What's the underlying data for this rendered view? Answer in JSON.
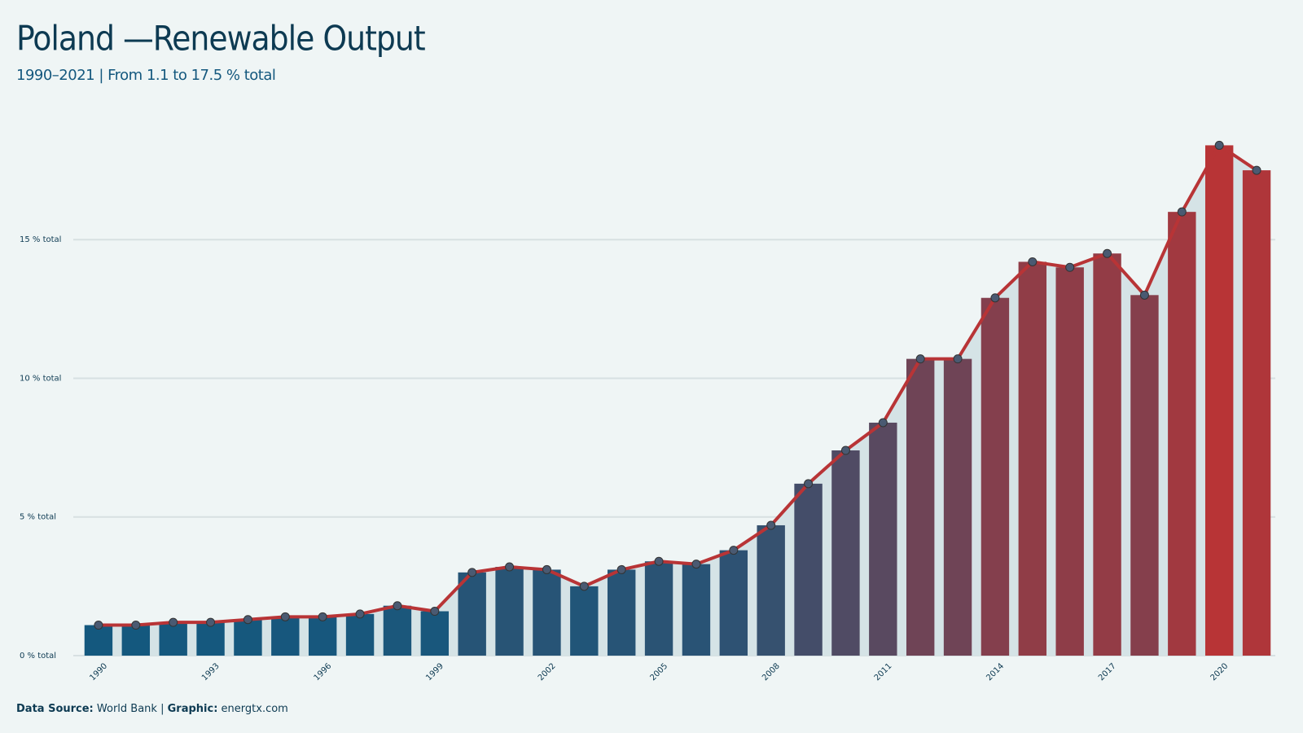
{
  "chart_data": {
    "type": "bar",
    "title": "Poland —Renewable Output",
    "subtitle": "1990–2021 | From 1.1 to 17.5 % total",
    "categories": [
      "1990",
      null,
      null,
      "1993",
      null,
      null,
      "1996",
      null,
      null,
      "1999",
      null,
      null,
      "2002",
      null,
      null,
      "2005",
      null,
      null,
      "2008",
      null,
      null,
      "2011",
      null,
      null,
      "2014",
      null,
      null,
      "2017",
      null,
      null,
      "2020",
      null
    ],
    "values": [
      1.1,
      1.1,
      1.2,
      1.2,
      1.3,
      1.4,
      1.4,
      1.5,
      1.8,
      1.6,
      3.0,
      3.2,
      3.1,
      2.5,
      3.1,
      3.4,
      3.3,
      3.8,
      4.7,
      6.2,
      7.4,
      8.4,
      10.7,
      10.7,
      12.9,
      14.2,
      14.0,
      14.5,
      13.0,
      16.0,
      18.4,
      17.5
    ],
    "color_low": "#14587e",
    "color_high": "#b83436",
    "line_color": "#b83436",
    "marker_color": "#4a5a72",
    "area_color": "#d5e3e6",
    "ylim": [
      0,
      19
    ],
    "yticks": [
      {
        "value": 0,
        "label": "0 % total"
      },
      {
        "value": 5,
        "label": "5 % total"
      },
      {
        "value": 10,
        "label": "10 % total"
      },
      {
        "value": 15,
        "label": "15 % total"
      }
    ],
    "grid": true,
    "source_label": "Data Source:",
    "source": "World Bank",
    "credit_label": "Graphic:",
    "credit": "energtx.com"
  }
}
